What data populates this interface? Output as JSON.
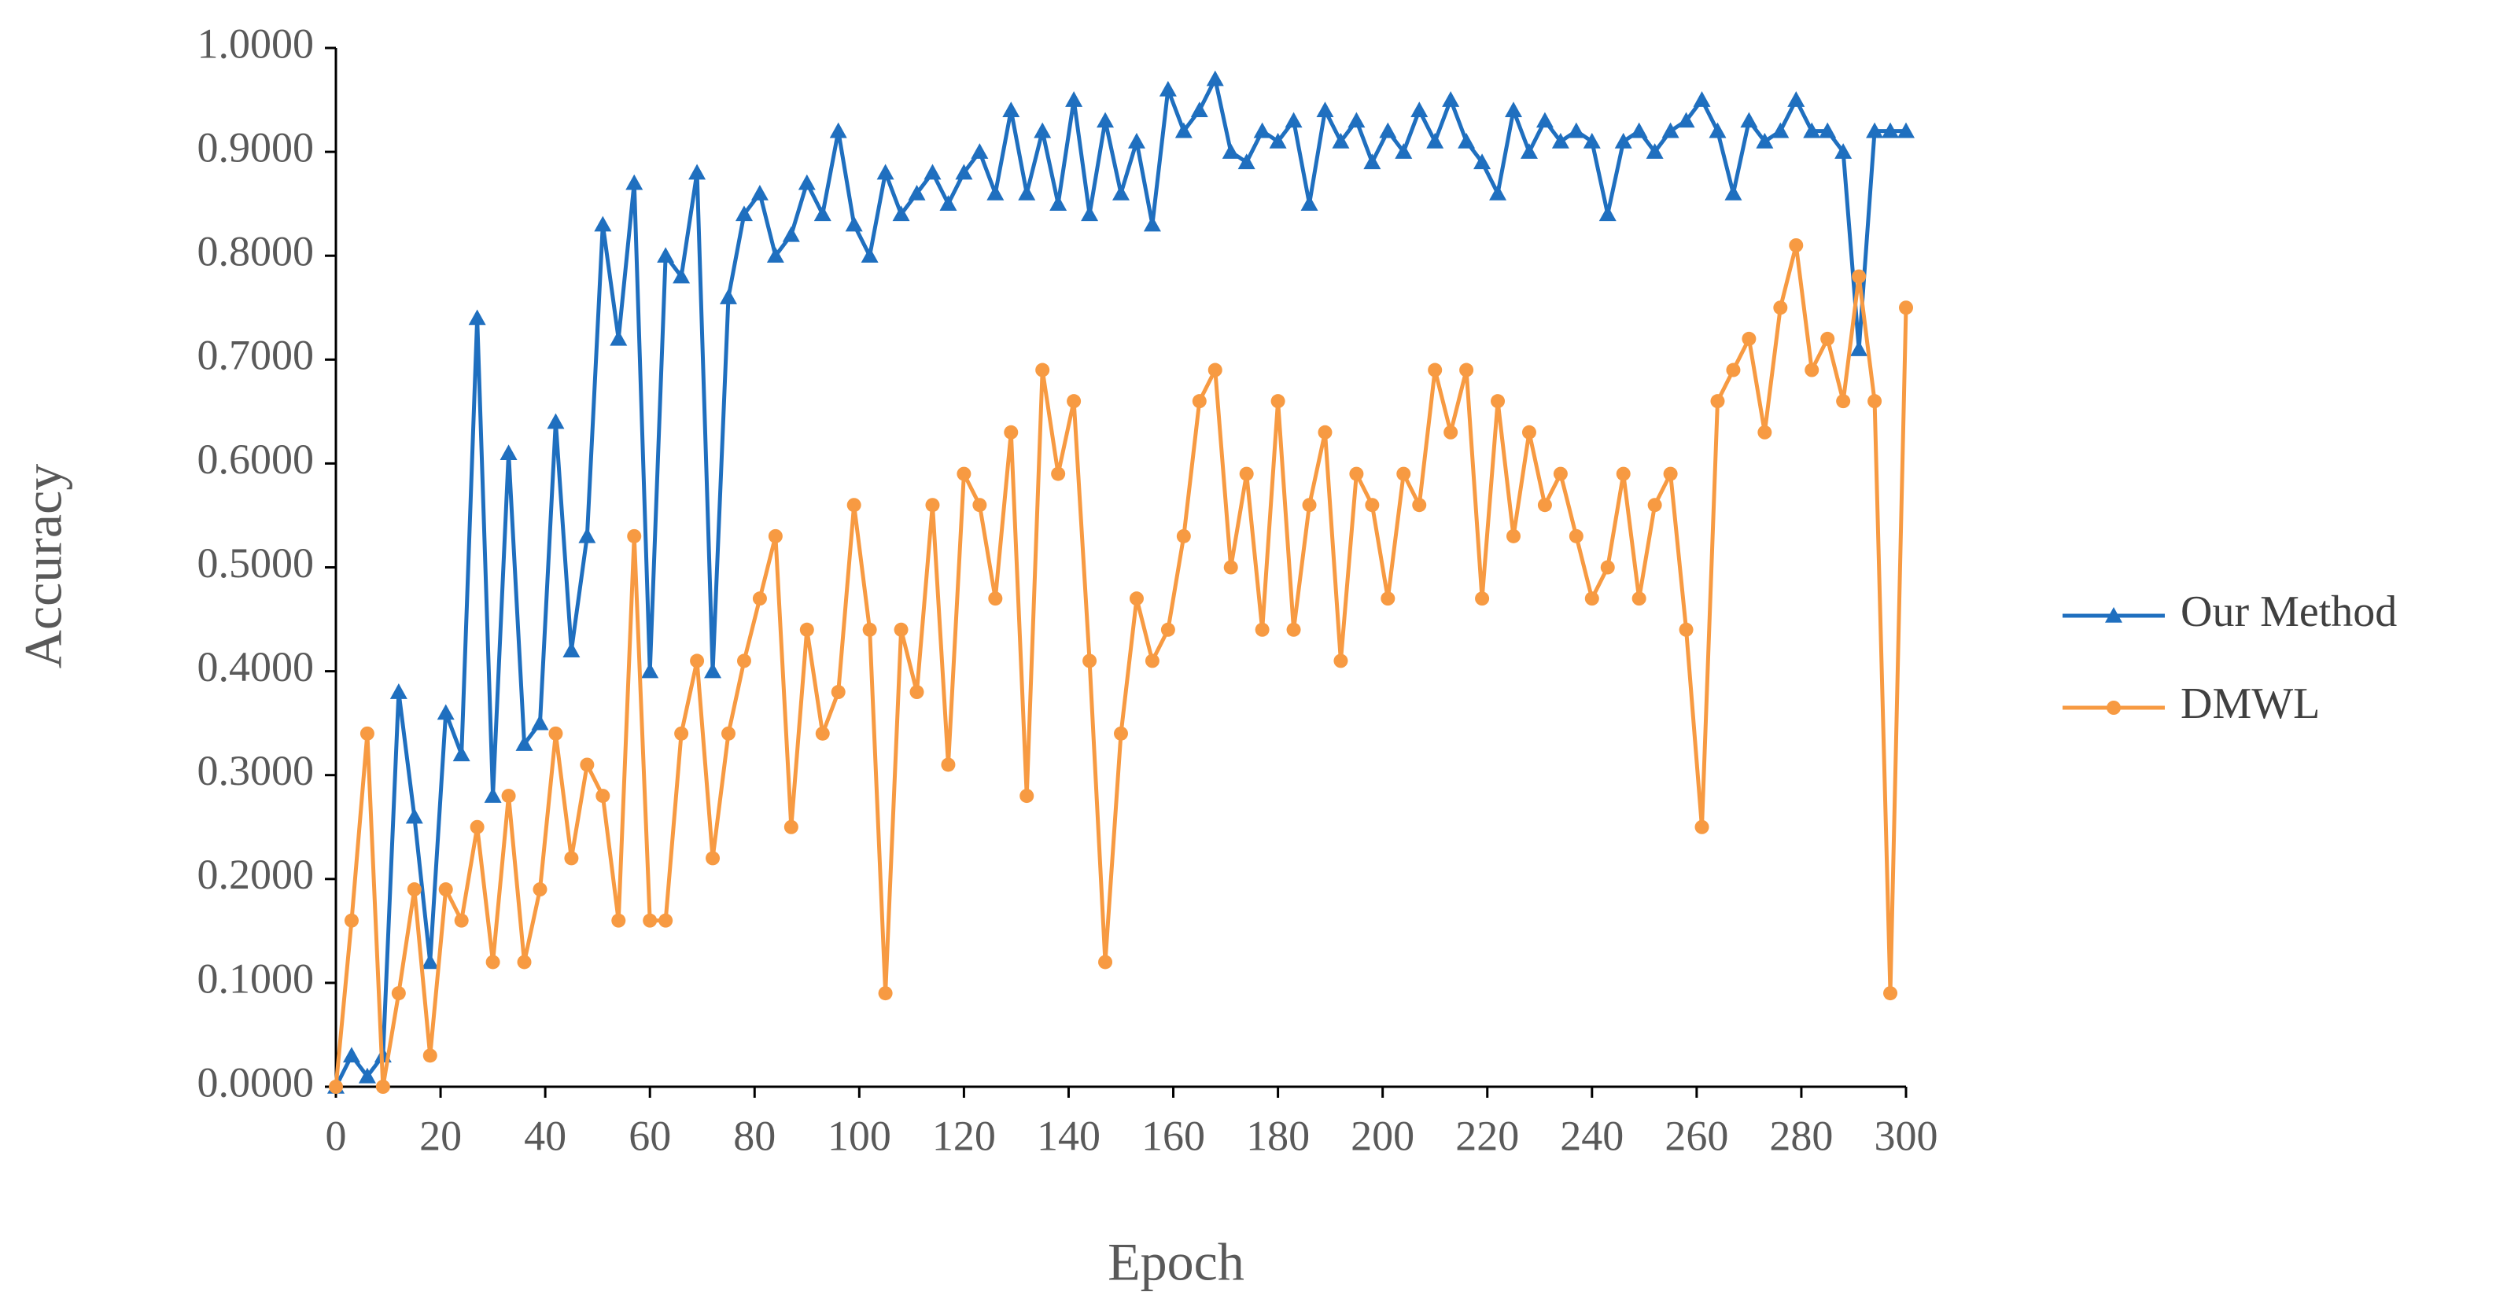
{
  "chart_data": {
    "type": "line",
    "x_label": "Epoch",
    "y_label": "Accuracy",
    "x": [
      0,
      3,
      6,
      9,
      12,
      15,
      18,
      21,
      24,
      27,
      30,
      33,
      36,
      39,
      42,
      45,
      48,
      51,
      54,
      57,
      60,
      63,
      66,
      69,
      72,
      75,
      78,
      81,
      84,
      87,
      90,
      93,
      96,
      99,
      102,
      105,
      108,
      111,
      114,
      117,
      120,
      123,
      126,
      129,
      132,
      135,
      138,
      141,
      144,
      147,
      150,
      153,
      156,
      159,
      162,
      165,
      168,
      171,
      174,
      177,
      180,
      183,
      186,
      189,
      192,
      195,
      198,
      201,
      204,
      207,
      210,
      213,
      216,
      219,
      222,
      225,
      228,
      231,
      234,
      237,
      240,
      243,
      246,
      249,
      252,
      255,
      258,
      261,
      264,
      267,
      270,
      273,
      276,
      279,
      282,
      285,
      288,
      291,
      294,
      297,
      300
    ],
    "series": [
      {
        "name": "Our Method",
        "color": "#1f6fbf",
        "marker": "triangle",
        "values": [
          0,
          0.03,
          0.01,
          0.03,
          0.38,
          0.26,
          0.12,
          0.36,
          0.32,
          0.74,
          0.28,
          0.61,
          0.33,
          0.35,
          0.64,
          0.42,
          0.53,
          0.83,
          0.72,
          0.87,
          0.4,
          0.8,
          0.78,
          0.88,
          0.4,
          0.76,
          0.84,
          0.86,
          0.8,
          0.82,
          0.87,
          0.84,
          0.92,
          0.83,
          0.8,
          0.88,
          0.84,
          0.86,
          0.88,
          0.85,
          0.88,
          0.9,
          0.86,
          0.94,
          0.86,
          0.92,
          0.85,
          0.95,
          0.84,
          0.93,
          0.86,
          0.91,
          0.83,
          0.96,
          0.92,
          0.94,
          0.97,
          0.9,
          0.89,
          0.92,
          0.91,
          0.93,
          0.85,
          0.94,
          0.91,
          0.93,
          0.89,
          0.92,
          0.9,
          0.94,
          0.91,
          0.95,
          0.91,
          0.89,
          0.86,
          0.94,
          0.9,
          0.93,
          0.91,
          0.92,
          0.91,
          0.84,
          0.91,
          0.92,
          0.9,
          0.92,
          0.93,
          0.95,
          0.92,
          0.86,
          0.93,
          0.91,
          0.92,
          0.95,
          0.92,
          0.92,
          0.9,
          0.71,
          0.92,
          0.92,
          0.92
        ]
      },
      {
        "name": "DMWL",
        "color": "#f79a42",
        "marker": "circle",
        "values": [
          0,
          0.16,
          0.34,
          0,
          0.09,
          0.19,
          0.03,
          0.19,
          0.16,
          0.25,
          0.12,
          0.28,
          0.12,
          0.19,
          0.34,
          0.22,
          0.31,
          0.28,
          0.16,
          0.53,
          0.16,
          0.16,
          0.34,
          0.41,
          0.22,
          0.34,
          0.41,
          0.47,
          0.53,
          0.25,
          0.44,
          0.34,
          0.38,
          0.56,
          0.44,
          0.09,
          0.44,
          0.38,
          0.56,
          0.31,
          0.59,
          0.56,
          0.47,
          0.63,
          0.28,
          0.69,
          0.59,
          0.66,
          0.41,
          0.12,
          0.34,
          0.47,
          0.41,
          0.44,
          0.53,
          0.66,
          0.69,
          0.5,
          0.59,
          0.44,
          0.66,
          0.44,
          0.56,
          0.63,
          0.41,
          0.59,
          0.56,
          0.47,
          0.59,
          0.56,
          0.69,
          0.63,
          0.69,
          0.47,
          0.66,
          0.53,
          0.63,
          0.56,
          0.59,
          0.53,
          0.47,
          0.5,
          0.59,
          0.47,
          0.56,
          0.59,
          0.44,
          0.25,
          0.66,
          0.69,
          0.72,
          0.63,
          0.75,
          0.81,
          0.69,
          0.72,
          0.66,
          0.78,
          0.66,
          0.09,
          0.75
        ]
      }
    ],
    "xlim": [
      0,
      300
    ],
    "xticks": [
      0,
      20,
      40,
      60,
      80,
      100,
      120,
      140,
      160,
      180,
      200,
      220,
      240,
      260,
      280,
      300
    ],
    "ylim": [
      0,
      1
    ],
    "yticks": [
      {
        "value": 0,
        "label": "0.0000"
      },
      {
        "value": 0.1,
        "label": "0.1000"
      },
      {
        "value": 0.2,
        "label": "0.2000"
      },
      {
        "value": 0.3,
        "label": "0.3000"
      },
      {
        "value": 0.4,
        "label": "0.4000"
      },
      {
        "value": 0.5,
        "label": "0.5000"
      },
      {
        "value": 0.6,
        "label": "0.6000"
      },
      {
        "value": 0.7,
        "label": "0.7000"
      },
      {
        "value": 0.8,
        "label": "0.8000"
      },
      {
        "value": 0.9,
        "label": "0.9000"
      },
      {
        "value": 1,
        "label": "1.0000"
      }
    ],
    "grid": false,
    "legend": "right"
  }
}
